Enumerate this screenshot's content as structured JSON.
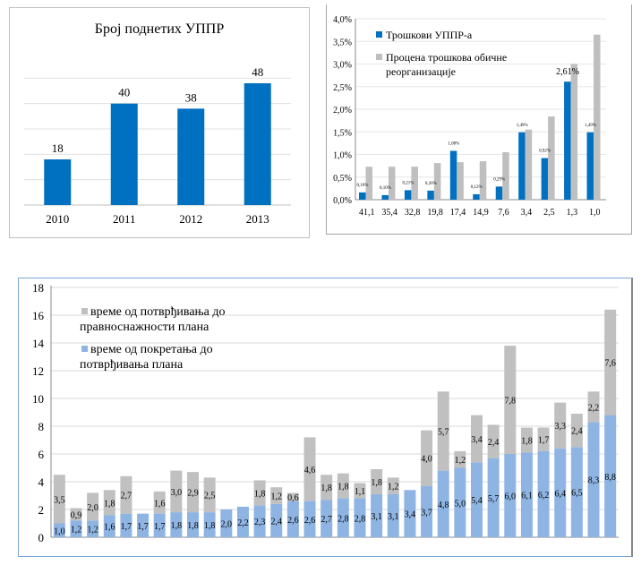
{
  "chart_data": [
    {
      "type": "bar",
      "title": "Број поднетих УППР",
      "categories": [
        "2010",
        "2011",
        "2012",
        "2013"
      ],
      "values": [
        18,
        40,
        38,
        48
      ],
      "ylim": [
        0,
        50
      ],
      "color": "#0070c0",
      "grid": true
    },
    {
      "type": "bar",
      "categories": [
        "41,1",
        "35,4",
        "32,8",
        "19,8",
        "17,4",
        "14,9",
        "7,6",
        "3,4",
        "2,5",
        "1,3",
        "1,0"
      ],
      "series": [
        {
          "name": "Трошкови УППР-а",
          "color": "#0070c0",
          "values": [
            0.16,
            0.1,
            0.21,
            0.2,
            1.08,
            0.12,
            0.29,
            1.49,
            0.92,
            2.61,
            1.49
          ],
          "labels": [
            "0,16%",
            "0,10%",
            "0,21%",
            "0,20%",
            "1,08%",
            "0,12%",
            "0,29%",
            "1,49%",
            "0,92%",
            "2,61%",
            "1,49%"
          ]
        },
        {
          "name": "Процена трошкова обичне реорганизације",
          "color": "#bfbfbf",
          "values": [
            0.73,
            0.73,
            0.73,
            0.81,
            0.83,
            0.85,
            1.05,
            1.55,
            1.84,
            3.0,
            3.65
          ]
        }
      ],
      "yticks": [
        "0,0%",
        "0,5%",
        "1,0%",
        "1,5%",
        "2,0%",
        "2,5%",
        "3,0%",
        "3,5%",
        "4,0%"
      ],
      "ylim": [
        0,
        4
      ],
      "legend": "top-left",
      "grid": true
    },
    {
      "type": "bar",
      "stacked": true,
      "yticks": [
        "0",
        "2",
        "4",
        "6",
        "8",
        "10",
        "12",
        "14",
        "16",
        "18"
      ],
      "ylim": [
        0,
        18
      ],
      "legend": "top-left",
      "grid": true,
      "series": [
        {
          "name": "време од покретања до потврђивања плана",
          "color": "#8eb4e3",
          "values": [
            1.0,
            1.2,
            1.2,
            1.6,
            1.7,
            1.7,
            1.7,
            1.8,
            1.8,
            1.8,
            2.0,
            2.2,
            2.3,
            2.4,
            2.6,
            2.6,
            2.7,
            2.8,
            2.8,
            3.1,
            3.1,
            3.4,
            3.7,
            4.8,
            5.0,
            5.4,
            5.7,
            6.0,
            6.1,
            6.2,
            6.4,
            6.5,
            8.3,
            8.8
          ]
        },
        {
          "name": "време од потврђивања до правноснажности плана",
          "color": "#c0c0c0",
          "values": [
            3.5,
            0.9,
            2.0,
            1.8,
            2.7,
            0,
            1.6,
            3.0,
            2.9,
            2.5,
            0,
            0,
            1.8,
            1.2,
            0.6,
            4.6,
            1.8,
            1.8,
            1.1,
            1.8,
            1.2,
            0,
            4.0,
            5.7,
            1.2,
            3.4,
            2.4,
            7.8,
            1.8,
            1.7,
            3.3,
            2.4,
            2.2,
            7.6
          ]
        }
      ]
    }
  ]
}
